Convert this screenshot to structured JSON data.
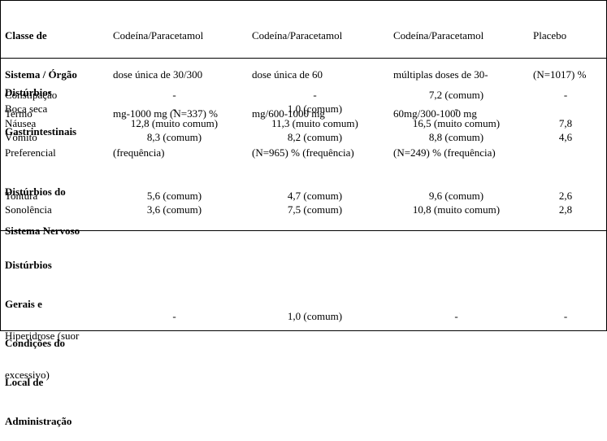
{
  "header": {
    "col1": [
      "Classe de",
      "Sistema / Órgão",
      "Termo",
      "Preferencial"
    ],
    "col2": [
      "Codeína/Paracetamol",
      "dose única de 30/300",
      "mg-1000 mg (N=337) %",
      "(frequência)"
    ],
    "col3": [
      "Codeína/Paracetamol",
      "dose única de 60",
      "mg/600-1000 mg",
      "(N=965) % (frequência)"
    ],
    "col4": [
      "Codeína/Paracetamol",
      "múltiplas doses de 30-",
      "60mg/300-1000 mg",
      "(N=249) % (frequência)"
    ],
    "col5": [
      "Placebo",
      "(N=1017) %"
    ]
  },
  "sections": [
    {
      "title": [
        "Distúrbios",
        "Gastrintestinais"
      ],
      "rows": [
        {
          "term": [
            "Constipação"
          ],
          "c2": "-",
          "c3": "-",
          "c4": "7,2 (comum)",
          "c5": "-"
        },
        {
          "term": [
            "Boca seca"
          ],
          "c2": "-",
          "c3": "1,0 (comum)",
          "c4": "-",
          "c5": ""
        },
        {
          "term": [
            "Náusea"
          ],
          "c2": "12,8 (muito comum)",
          "c3": "11,3 (muito comum)",
          "c4": "16,5 (muito comum)",
          "c5": "7,8"
        },
        {
          "term": [
            "Vômito"
          ],
          "c2": "8,3 (comum)",
          "c3": "8,2 (comum)",
          "c4": "8,8 (comum)",
          "c5": "4,6"
        }
      ]
    },
    {
      "title": [
        "Distúrbios do",
        "Sistema Nervoso"
      ],
      "rows": [
        {
          "term": [
            "Tontura"
          ],
          "c2": "5,6 (comum)",
          "c3": "4,7 (comum)",
          "c4": "9,6 (comum)",
          "c5": "2,6"
        },
        {
          "term": [
            "Sonolência"
          ],
          "c2": "3,6 (comum)",
          "c3": "7,5 (comum)",
          "c4": "10,8 (muito comum)",
          "c5": "2,8"
        }
      ]
    },
    {
      "title": [
        "Distúrbios",
        "Gerais e",
        "Condições do",
        "Local de",
        "Administração"
      ],
      "rows": [
        {
          "term": [
            "Hiperidrose (suor",
            "excessivo)"
          ],
          "c2": "-",
          "c3": "1,0 (comum)",
          "c4": "-",
          "c5": "-"
        }
      ]
    }
  ]
}
